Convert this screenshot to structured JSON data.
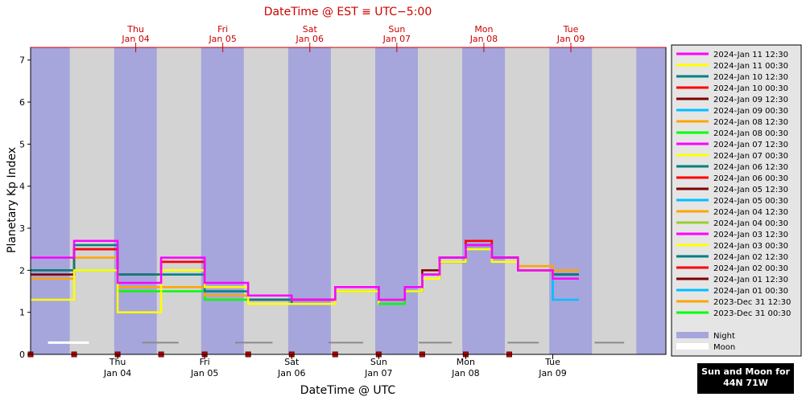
{
  "chart_data": {
    "type": "line",
    "title": "DateTime @ EST ≡ UTC−5:00",
    "xlabel": "DateTime @ UTC",
    "ylabel": "Planetary Kp Index",
    "ylim": [
      0,
      7.3
    ],
    "xlim": [
      "2024-01-03 00:00",
      "2024-01-10 06:00"
    ],
    "yticks": [
      0,
      1,
      2,
      3,
      4,
      5,
      6,
      7
    ],
    "ytick_labels": [
      "0",
      "1",
      "2",
      "3",
      "4",
      "5",
      "6",
      "7"
    ],
    "bottom_ticks": [
      {
        "x": 1.0,
        "day": "Thu",
        "date": "Jan 04"
      },
      {
        "x": 2.0,
        "day": "Fri",
        "date": "Jan 05"
      },
      {
        "x": 3.0,
        "day": "Sat",
        "date": "Jan 06"
      },
      {
        "x": 4.0,
        "day": "Sun",
        "date": "Jan 07"
      },
      {
        "x": 5.0,
        "day": "Mon",
        "date": "Jan 08"
      },
      {
        "x": 6.0,
        "day": "Tue",
        "date": "Jan 09"
      }
    ],
    "top_ticks": [
      {
        "x": 1.2083,
        "day": "Thu",
        "date": "Jan 04"
      },
      {
        "x": 2.2083,
        "day": "Fri",
        "date": "Jan 05"
      },
      {
        "x": 3.2083,
        "day": "Sat",
        "date": "Jan 06"
      },
      {
        "x": 4.2083,
        "day": "Sun",
        "date": "Jan 07"
      },
      {
        "x": 5.2083,
        "day": "Mon",
        "date": "Jan 08"
      },
      {
        "x": 6.2083,
        "day": "Tue",
        "date": "Jan 09"
      }
    ],
    "night_intervals": [
      [
        0,
        0.45
      ],
      [
        0.96,
        1.45
      ],
      [
        1.96,
        2.45
      ],
      [
        2.96,
        3.45
      ],
      [
        3.96,
        4.45
      ],
      [
        4.96,
        5.45
      ],
      [
        5.96,
        6.45
      ],
      [
        6.96,
        7.3
      ]
    ],
    "moon_intervals": [
      [
        0.2,
        0.67
      ],
      [
        1.28,
        1.7
      ],
      [
        2.35,
        2.78
      ],
      [
        3.42,
        3.82
      ],
      [
        4.46,
        4.84
      ],
      [
        5.48,
        5.84
      ],
      [
        6.48,
        6.82
      ]
    ],
    "grey_moon_intervals": [
      [
        1.28,
        1.7
      ],
      [
        2.35,
        2.78
      ],
      [
        3.42,
        3.82
      ],
      [
        4.46,
        4.84
      ],
      [
        5.48,
        5.84
      ],
      [
        6.48,
        6.82
      ]
    ],
    "red_markers_x": [
      0.0,
      0.5,
      1.0,
      1.5,
      2.0,
      2.5,
      3.0,
      3.5,
      4.0,
      4.5,
      5.0,
      5.5
    ],
    "legend_position": "right",
    "series": [
      {
        "name": "2024-Jan 11 12:30",
        "color": "#ff00ff",
        "style": "solid",
        "x": [
          4.0,
          4.3,
          4.5,
          4.7,
          5.0,
          5.3,
          5.6,
          6.0
        ],
        "y": [
          1.3,
          1.6,
          1.9,
          2.3,
          2.6,
          2.3,
          2.0,
          1.8
        ]
      },
      {
        "name": "2024-Jan 11 00:30",
        "color": "#ffff00",
        "style": "solid",
        "x": [
          4.0,
          4.3,
          4.5,
          4.7,
          5.0,
          5.3,
          5.6,
          6.0
        ],
        "y": [
          1.3,
          1.5,
          1.8,
          2.2,
          2.5,
          2.2,
          2.0,
          1.8
        ]
      },
      {
        "name": "2024-Jan 10 12:30",
        "color": "#008080",
        "style": "solid",
        "x": [
          4.0,
          4.3,
          4.5,
          4.7,
          5.0,
          5.3,
          5.6,
          6.0
        ],
        "y": [
          1.3,
          1.6,
          1.9,
          2.3,
          2.6,
          2.3,
          2.0,
          1.9
        ]
      },
      {
        "name": "2024-Jan 10 00:30",
        "color": "#ff0000",
        "style": "solid",
        "x": [
          4.0,
          4.3,
          4.5,
          4.7,
          5.0,
          5.3,
          5.6,
          6.0
        ],
        "y": [
          1.3,
          1.6,
          1.9,
          2.3,
          2.7,
          2.3,
          2.0,
          1.9
        ]
      },
      {
        "name": "2024-Jan 09 12:30",
        "color": "#800000",
        "style": "solid",
        "x": [
          4.0,
          4.3,
          4.5,
          4.7,
          5.0,
          5.3,
          5.6,
          6.0
        ],
        "y": [
          1.3,
          1.6,
          2.0,
          2.3,
          2.7,
          2.3,
          2.0,
          1.9
        ]
      },
      {
        "name": "2024-Jan 09 00:30",
        "color": "#00bfff",
        "style": "solid",
        "x": [
          4.0,
          4.3,
          4.5,
          4.7,
          5.0,
          5.3,
          5.6,
          6.0
        ],
        "y": [
          1.3,
          1.5,
          1.8,
          2.2,
          2.5,
          2.3,
          2.0,
          1.3
        ]
      },
      {
        "name": "2024-Jan 08 12:30",
        "color": "#ffa500",
        "style": "solid",
        "x": [
          4.0,
          4.3,
          4.5,
          4.7,
          5.0,
          5.3,
          5.6,
          6.0
        ],
        "y": [
          1.3,
          1.5,
          1.8,
          2.2,
          2.5,
          2.3,
          2.1,
          2.0
        ]
      },
      {
        "name": "2024-Jan 08 00:30",
        "color": "#00ff00",
        "style": "solid",
        "x": [
          4.0,
          4.3,
          4.5,
          4.7,
          5.0,
          5.3,
          5.6,
          6.0
        ],
        "y": [
          1.2,
          1.5,
          1.8,
          2.2,
          2.5,
          2.3,
          2.0,
          1.9
        ]
      },
      {
        "name": "2024-Jan 07 12:30",
        "color": "#ff00ff",
        "style": "solid",
        "x": [
          4.0,
          4.3,
          4.5,
          4.7,
          5.0,
          5.3,
          5.6,
          6.0
        ],
        "y": [
          1.2,
          1.5,
          1.8,
          2.2,
          2.5,
          2.3,
          2.0,
          1.9
        ]
      },
      {
        "name": "2024-Jan 07 00:30",
        "color": "#ffff00",
        "style": "solid",
        "x": [
          4.0,
          4.3,
          4.5,
          4.7,
          5.0,
          5.3,
          5.6,
          6.0
        ],
        "y": [
          1.2,
          1.5,
          1.8,
          2.2,
          2.5,
          2.3,
          2.0,
          1.9
        ]
      },
      {
        "name": "2024-Jan 06 12:30",
        "color": "#008080",
        "style": "solid",
        "x": [
          4.0,
          4.3,
          4.5,
          4.7,
          5.0,
          5.3,
          5.6,
          6.0
        ],
        "y": [
          1.2,
          1.5,
          1.8,
          2.2,
          2.5,
          2.3,
          2.0,
          1.9
        ]
      },
      {
        "name": "2024-Jan 06 00:30",
        "color": "#ff0000",
        "style": "solid",
        "x": [
          4.0,
          4.3,
          4.5,
          4.7,
          5.0,
          5.3,
          5.6,
          6.0
        ],
        "y": [
          1.2,
          1.5,
          1.8,
          2.2,
          2.5,
          2.3,
          2.0,
          1.9
        ]
      },
      {
        "name": "2024-Jan 05 12:30",
        "color": "#800000",
        "style": "solid",
        "x": [
          4.0,
          4.3,
          4.5,
          4.7,
          5.0,
          5.3,
          5.6,
          6.0
        ],
        "y": [
          1.2,
          1.5,
          1.8,
          2.2,
          2.5,
          2.3,
          2.0,
          1.9
        ]
      },
      {
        "name": "2024-Jan 05 00:30",
        "color": "#00bfff",
        "style": "solid",
        "x": [
          4.0,
          4.3,
          4.5,
          4.7,
          5.0,
          5.3,
          5.6,
          6.0
        ],
        "y": [
          1.2,
          1.5,
          1.8,
          2.2,
          2.5,
          2.3,
          2.0,
          1.9
        ]
      },
      {
        "name": "2024-Jan 04 12:30",
        "color": "#ffa500",
        "style": "solid",
        "x": [
          4.0,
          4.3,
          4.5,
          4.7,
          5.0,
          5.3,
          5.6,
          6.0
        ],
        "y": [
          1.2,
          1.5,
          1.8,
          2.2,
          2.5,
          2.3,
          2.0,
          1.9
        ]
      },
      {
        "name": "2024-Jan 04 00:30",
        "color": "#9acd32",
        "style": "solid",
        "x": [
          4.0,
          4.3,
          4.5,
          4.7,
          5.0,
          5.3,
          5.6,
          6.0
        ],
        "y": [
          1.2,
          1.5,
          1.8,
          2.2,
          2.5,
          2.3,
          2.0,
          1.9
        ]
      },
      {
        "name": "2024-Jan 03 12:30",
        "color": "#ff00ff",
        "style": "solid",
        "x": [
          0.0,
          0.5,
          1.0,
          1.5,
          2.0,
          2.5,
          3.0,
          3.5,
          4.0
        ],
        "y": [
          2.3,
          2.7,
          1.7,
          2.3,
          1.7,
          1.4,
          1.3,
          1.6,
          1.3
        ]
      },
      {
        "name": "2024-Jan 03 00:30",
        "color": "#ffff00",
        "style": "solid",
        "x": [
          0.0,
          0.5,
          1.0,
          1.5,
          2.0,
          2.5,
          3.0,
          3.5,
          4.0
        ],
        "y": [
          1.3,
          2.0,
          1.0,
          2.0,
          1.6,
          1.2,
          1.2,
          1.5,
          1.2
        ]
      },
      {
        "name": "2024-Jan 02 12:30",
        "color": "#008080",
        "style": "solid",
        "x": [
          0.0,
          0.5,
          1.0,
          1.5,
          2.0,
          2.5,
          3.0,
          3.5,
          4.0
        ],
        "y": [
          2.0,
          2.6,
          1.9,
          1.9,
          1.5,
          1.3,
          1.2,
          1.6,
          1.3
        ]
      },
      {
        "name": "2024-Jan 02 00:30",
        "color": "#ff0000",
        "style": "solid",
        "x": [
          0.0,
          0.5,
          1.0,
          1.5,
          2.0,
          2.5,
          3.0,
          3.5,
          4.0
        ],
        "y": [
          2.0,
          2.5,
          1.9,
          2.2,
          1.6,
          1.3,
          1.3,
          1.6,
          1.3
        ]
      },
      {
        "name": "2024-Jan 01 12:30",
        "color": "#800000",
        "style": "solid",
        "x": [
          0.0,
          0.5,
          1.0,
          1.5,
          2.0,
          2.5,
          3.0,
          3.5,
          4.0
        ],
        "y": [
          1.9,
          2.5,
          1.9,
          2.2,
          1.6,
          1.3,
          1.3,
          1.6,
          1.3
        ]
      },
      {
        "name": "2024-Jan 01 00:30",
        "color": "#00bfff",
        "style": "solid",
        "x": [
          0.0,
          0.5,
          1.0,
          1.5,
          2.0,
          2.5,
          3.0,
          3.5,
          4.0
        ],
        "y": [
          1.9,
          2.5,
          1.9,
          1.9,
          1.6,
          1.3,
          1.3,
          1.6,
          1.3
        ]
      },
      {
        "name": "2023-Dec 31 12:30",
        "color": "#ffa500",
        "style": "solid",
        "x": [
          0.0,
          0.5,
          1.0,
          1.5,
          2.0,
          2.5,
          3.0,
          3.5,
          4.0
        ],
        "y": [
          1.8,
          2.3,
          1.6,
          1.6,
          1.4,
          1.2,
          1.2,
          1.5,
          1.2
        ]
      },
      {
        "name": "2023-Dec 31 00:30",
        "color": "#00ff00",
        "style": "solid",
        "x": [
          0.0,
          0.5,
          1.0,
          1.5,
          2.0,
          2.5,
          3.0,
          3.5,
          4.0
        ],
        "y": [
          1.9,
          2.0,
          1.5,
          1.5,
          1.3,
          1.2,
          1.2,
          1.5,
          1.2
        ]
      }
    ],
    "legend_extra": [
      {
        "label": "Night",
        "color": "#a6a6dd"
      },
      {
        "label": "Moon",
        "color": "#ffffff"
      }
    ]
  },
  "sun_moon_box": {
    "line1": "Sun and Moon for",
    "line2": "44N 71W"
  }
}
